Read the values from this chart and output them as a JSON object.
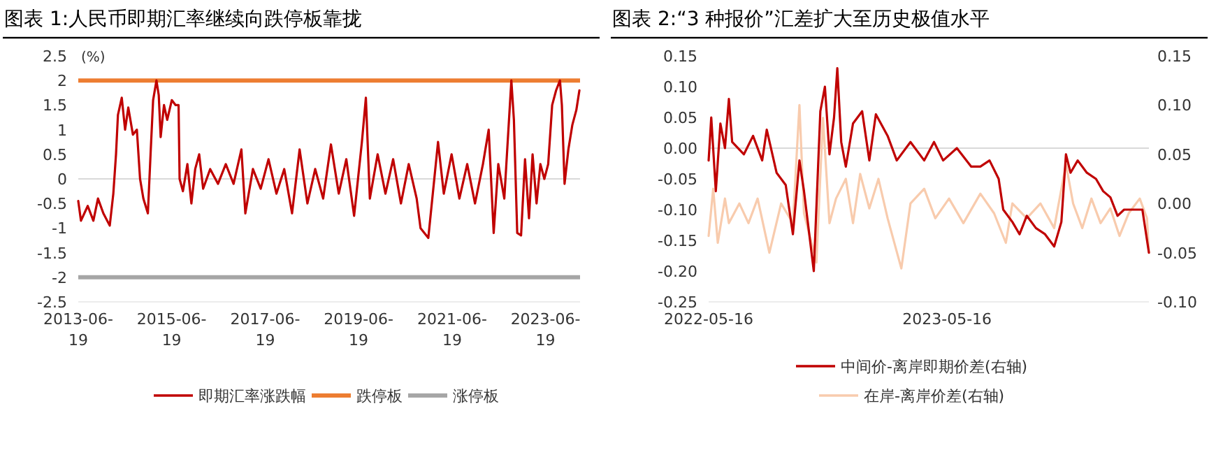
{
  "chart_data": [
    {
      "type": "line",
      "title": "图表 1:人民币即期汇率继续向跌停板靠拢",
      "ylabel": "(%)",
      "legend": "bottom",
      "grid": false,
      "xlim": [
        "2013-06-19",
        "2024-03-15"
      ],
      "xticks": [
        {
          "value": "2013-06-19",
          "label": "2013-06-19"
        },
        {
          "value": "2015-06-19",
          "label": "2015-06-19"
        },
        {
          "value": "2017-06-19",
          "label": "2017-06-19"
        },
        {
          "value": "2019-06-19",
          "label": "2019-06-19"
        },
        {
          "value": "2021-06-19",
          "label": "2021-06-19"
        },
        {
          "value": "2023-06-19",
          "label": "2023-06-19"
        }
      ],
      "ylim": [
        -2.5,
        2.5
      ],
      "yticks": [
        -2.5,
        -2,
        -1.5,
        -1,
        -0.5,
        0,
        0.5,
        1,
        1.5,
        2,
        2.5
      ],
      "ref_lines": [
        {
          "axis": "y",
          "value": 0,
          "color": "#d9d9d9"
        },
        {
          "axis": "y",
          "value": 2,
          "label": "跌停板",
          "color": "#ed7d31"
        },
        {
          "axis": "y",
          "value": -2,
          "label": "涨停板",
          "color": "#a6a6a6"
        }
      ],
      "series": [
        {
          "name": "即期汇率涨跌幅",
          "color": "#c00000",
          "x": [
            "2013-06-19",
            "2013-07-10",
            "2013-09-01",
            "2013-10-15",
            "2013-11-20",
            "2014-01-01",
            "2014-02-20",
            "2014-03-20",
            "2014-04-10",
            "2014-04-25",
            "2014-05-25",
            "2014-06-20",
            "2014-07-15",
            "2014-08-20",
            "2014-09-20",
            "2014-10-15",
            "2014-11-10",
            "2014-12-15",
            "2015-01-05",
            "2015-01-25",
            "2015-02-20",
            "2015-03-10",
            "2015-03-25",
            "2015-04-20",
            "2015-05-15",
            "2015-06-20",
            "2015-07-20",
            "2015-08-12",
            "2015-08-20",
            "2015-09-15",
            "2015-10-20",
            "2015-11-20",
            "2015-12-20",
            "2016-01-20",
            "2016-02-20",
            "2016-04-15",
            "2016-06-15",
            "2016-08-15",
            "2016-10-15",
            "2016-12-15",
            "2017-01-15",
            "2017-03-15",
            "2017-05-15",
            "2017-07-15",
            "2017-09-15",
            "2017-11-15",
            "2018-01-15",
            "2018-03-15",
            "2018-05-15",
            "2018-07-15",
            "2018-09-15",
            "2018-11-15",
            "2019-01-15",
            "2019-03-15",
            "2019-05-15",
            "2019-07-15",
            "2019-08-15",
            "2019-09-15",
            "2019-11-15",
            "2020-01-15",
            "2020-03-15",
            "2020-05-15",
            "2020-07-15",
            "2020-09-15",
            "2020-10-15",
            "2020-12-15",
            "2021-03-01",
            "2021-04-15",
            "2021-06-15",
            "2021-08-15",
            "2021-10-15",
            "2021-12-15",
            "2022-02-15",
            "2022-04-01",
            "2022-05-10",
            "2022-06-15",
            "2022-08-01",
            "2022-09-25",
            "2022-10-15",
            "2022-11-10",
            "2022-12-10",
            "2023-01-10",
            "2023-02-10",
            "2023-03-10",
            "2023-04-10",
            "2023-05-10",
            "2023-06-10",
            "2023-07-10",
            "2023-08-10",
            "2023-09-10",
            "2023-10-10",
            "2023-10-25",
            "2023-11-15",
            "2023-12-15",
            "2024-01-15",
            "2024-02-15",
            "2024-03-10"
          ],
          "values": [
            -0.45,
            -0.85,
            -0.55,
            -0.85,
            -0.4,
            -0.7,
            -0.95,
            -0.3,
            0.5,
            1.3,
            1.65,
            1.0,
            1.45,
            0.9,
            1.0,
            0.0,
            -0.4,
            -0.7,
            0.5,
            1.6,
            2.0,
            1.7,
            0.85,
            1.5,
            1.2,
            1.6,
            1.5,
            1.5,
            0.0,
            -0.25,
            0.3,
            -0.5,
            0.2,
            0.5,
            -0.2,
            0.2,
            -0.1,
            0.3,
            -0.1,
            0.6,
            -0.7,
            0.2,
            -0.2,
            0.4,
            -0.3,
            0.2,
            -0.7,
            0.6,
            -0.5,
            0.2,
            -0.4,
            0.7,
            -0.3,
            0.4,
            -0.75,
            0.75,
            1.65,
            -0.4,
            0.5,
            -0.3,
            0.4,
            -0.5,
            0.3,
            -0.4,
            -1.0,
            -1.2,
            0.75,
            -0.3,
            0.5,
            -0.4,
            0.3,
            -0.5,
            0.3,
            1.0,
            -1.1,
            0.3,
            -0.4,
            2.0,
            1.2,
            -1.1,
            -1.15,
            0.4,
            -0.8,
            0.5,
            -0.5,
            0.3,
            0.0,
            0.3,
            1.5,
            1.8,
            2.0,
            1.5,
            -0.1,
            0.6,
            1.1,
            1.4,
            1.8
          ]
        }
      ]
    },
    {
      "type": "line",
      "title": "图表 2:“3 种报价”汇差扩大至历史极值水平",
      "legend": "bottom",
      "grid": false,
      "xlim": [
        "2022-05-16",
        "2024-03-20"
      ],
      "xticks": [
        {
          "value": "2022-05-16",
          "label": "2022-05-16"
        },
        {
          "value": "2023-05-16",
          "label": "2023-05-16"
        }
      ],
      "ylim": [
        -0.25,
        0.15
      ],
      "yticks": [
        {
          "value": -0.25,
          "label": "-0.25"
        },
        {
          "value": -0.2,
          "label": "-0.20"
        },
        {
          "value": -0.15,
          "label": "-0.15"
        },
        {
          "value": -0.1,
          "label": "-0.10"
        },
        {
          "value": -0.05,
          "label": "-0.05"
        },
        {
          "value": 0,
          "label": "0.00"
        },
        {
          "value": 0.05,
          "label": "0.05"
        },
        {
          "value": 0.1,
          "label": "0.10"
        },
        {
          "value": 0.15,
          "label": "0.15"
        }
      ],
      "y2lim": [
        -0.1,
        0.15
      ],
      "y2ticks": [
        {
          "value": -0.1,
          "label": "-0.10"
        },
        {
          "value": -0.05,
          "label": "-0.05"
        },
        {
          "value": 0,
          "label": "0.00"
        },
        {
          "value": 0.05,
          "label": "0.05"
        },
        {
          "value": 0.1,
          "label": "0.10"
        },
        {
          "value": 0.15,
          "label": "0.15"
        }
      ],
      "ref_lines": [
        {
          "axis": "y",
          "value": 0,
          "color": "#d9d9d9"
        }
      ],
      "series": [
        {
          "name": "中间价-离岸即期价差(右轴)",
          "color": "#c00000",
          "x": [
            "2022-05-16",
            "2022-05-20",
            "2022-05-27",
            "2022-06-03",
            "2022-06-10",
            "2022-06-16",
            "2022-06-21",
            "2022-07-09",
            "2022-07-23",
            "2022-08-06",
            "2022-08-13",
            "2022-08-28",
            "2022-09-11",
            "2022-09-22",
            "2022-10-02",
            "2022-10-09",
            "2022-10-24",
            "2022-11-03",
            "2022-11-10",
            "2022-11-17",
            "2022-11-24",
            "2022-11-29",
            "2022-12-05",
            "2022-12-12",
            "2022-12-23",
            "2023-01-06",
            "2023-01-17",
            "2023-01-27",
            "2023-02-14",
            "2023-02-28",
            "2023-03-21",
            "2023-04-11",
            "2023-04-26",
            "2023-05-10",
            "2023-05-31",
            "2023-06-22",
            "2023-07-06",
            "2023-07-20",
            "2023-08-03",
            "2023-08-10",
            "2023-08-24",
            "2023-09-04",
            "2023-09-15",
            "2023-09-29",
            "2023-10-13",
            "2023-10-27",
            "2023-11-07",
            "2023-11-14",
            "2023-11-21",
            "2023-12-02",
            "2023-12-16",
            "2023-12-30",
            "2024-01-10",
            "2024-01-21",
            "2024-02-01",
            "2024-02-11",
            "2024-02-25",
            "2024-03-10",
            "2024-03-20"
          ],
          "values": [
            -0.02,
            0.05,
            -0.07,
            0.04,
            0.0,
            0.08,
            0.01,
            -0.01,
            0.02,
            -0.02,
            0.03,
            -0.04,
            -0.06,
            -0.14,
            -0.02,
            -0.07,
            -0.2,
            0.06,
            0.1,
            -0.01,
            0.05,
            0.13,
            0.01,
            -0.03,
            0.04,
            0.06,
            -0.02,
            0.055,
            0.02,
            -0.02,
            0.01,
            -0.02,
            0.01,
            -0.02,
            0.0,
            -0.03,
            -0.03,
            -0.02,
            -0.05,
            -0.1,
            -0.12,
            -0.14,
            -0.11,
            -0.13,
            -0.14,
            -0.16,
            -0.12,
            -0.01,
            -0.04,
            -0.02,
            -0.04,
            -0.05,
            -0.07,
            -0.08,
            -0.11,
            -0.1,
            -0.1,
            -0.1,
            -0.17
          ]
        },
        {
          "name": "在岸-离岸价差(右轴)",
          "color": "#f8cbad",
          "axis": "y2",
          "x": [
            "2022-05-16",
            "2022-05-23",
            "2022-05-30",
            "2022-06-10",
            "2022-06-16",
            "2022-07-02",
            "2022-07-16",
            "2022-07-30",
            "2022-08-17",
            "2022-09-04",
            "2022-09-22",
            "2022-10-02",
            "2022-10-09",
            "2022-10-28",
            "2022-11-07",
            "2022-11-17",
            "2022-11-27",
            "2022-12-12",
            "2022-12-23",
            "2023-01-03",
            "2023-01-17",
            "2023-01-31",
            "2023-02-14",
            "2023-03-07",
            "2023-03-21",
            "2023-04-11",
            "2023-04-28",
            "2023-05-19",
            "2023-06-10",
            "2023-07-06",
            "2023-07-27",
            "2023-08-14",
            "2023-08-24",
            "2023-09-15",
            "2023-10-06",
            "2023-10-27",
            "2023-11-14",
            "2023-11-25",
            "2023-12-09",
            "2023-12-23",
            "2024-01-06",
            "2024-01-21",
            "2024-02-04",
            "2024-02-18",
            "2024-03-06",
            "2024-03-17",
            "2024-03-20"
          ],
          "values": [
            -0.033,
            0.015,
            -0.04,
            0.005,
            -0.02,
            0.0,
            -0.02,
            0.005,
            -0.05,
            0.0,
            -0.02,
            0.1,
            -0.01,
            -0.06,
            0.087,
            -0.02,
            0.005,
            0.025,
            -0.02,
            0.03,
            -0.005,
            0.025,
            -0.015,
            -0.066,
            0.0,
            0.015,
            -0.015,
            0.005,
            -0.02,
            0.01,
            -0.01,
            -0.04,
            0.0,
            -0.015,
            0.0,
            -0.025,
            0.04,
            0.0,
            -0.025,
            0.005,
            -0.02,
            -0.005,
            -0.033,
            -0.01,
            0.005,
            -0.015,
            -0.05
          ]
        }
      ]
    }
  ]
}
